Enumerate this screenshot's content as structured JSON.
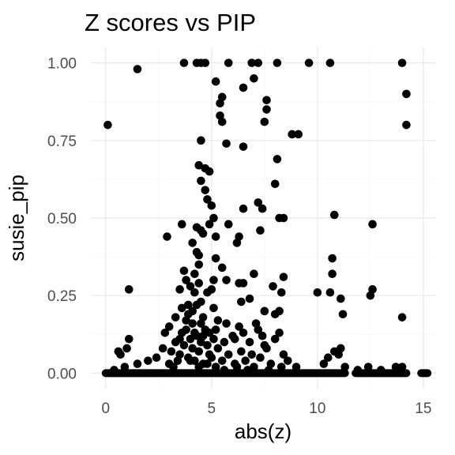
{
  "chart_data": {
    "type": "scatter",
    "title": "Z scores vs PIP",
    "xlabel": "abs(z)",
    "ylabel": "susie_pip",
    "xlim": [
      -0.7,
      15.6
    ],
    "ylim": [
      -0.05,
      1.05
    ],
    "x_ticks": [
      0,
      5,
      10,
      15
    ],
    "x_tick_labels": [
      "0",
      "5",
      "10",
      "15"
    ],
    "y_ticks": [
      0,
      0.25,
      0.5,
      0.75,
      1.0
    ],
    "y_tick_labels": [
      "0.00",
      "0.25",
      "0.50",
      "0.75",
      "1.00"
    ],
    "grid": true,
    "legend": "none",
    "point_color": "#000000",
    "series": [
      {
        "points": [
          [
            0.1,
            0.8
          ],
          [
            1.5,
            0.98
          ],
          [
            3.7,
            1.0
          ],
          [
            4.3,
            1.0
          ],
          [
            4.5,
            1.0
          ],
          [
            4.7,
            1.0
          ],
          [
            5.8,
            1.0
          ],
          [
            6.9,
            1.0
          ],
          [
            7.2,
            1.0
          ],
          [
            8.1,
            1.0
          ],
          [
            9.6,
            1.0
          ],
          [
            10.6,
            1.0
          ],
          [
            14.0,
            1.0
          ],
          [
            5.2,
            0.94
          ],
          [
            6.5,
            0.92
          ],
          [
            7.0,
            0.95
          ],
          [
            14.2,
            0.9
          ],
          [
            7.6,
            0.88
          ],
          [
            5.5,
            0.89
          ],
          [
            5.4,
            0.87
          ],
          [
            7.6,
            0.85
          ],
          [
            5.4,
            0.83
          ],
          [
            5.5,
            0.81
          ],
          [
            7.5,
            0.81
          ],
          [
            14.2,
            0.8
          ],
          [
            8.8,
            0.77
          ],
          [
            9.1,
            0.77
          ],
          [
            4.5,
            0.75
          ],
          [
            5.7,
            0.74
          ],
          [
            6.5,
            0.73
          ],
          [
            8.1,
            0.69
          ],
          [
            4.4,
            0.67
          ],
          [
            4.7,
            0.66
          ],
          [
            4.9,
            0.65
          ],
          [
            4.5,
            0.62
          ],
          [
            8.0,
            0.61
          ],
          [
            4.7,
            0.59
          ],
          [
            4.8,
            0.56
          ],
          [
            5.0,
            0.54
          ],
          [
            7.2,
            0.55
          ],
          [
            6.5,
            0.53
          ],
          [
            7.4,
            0.53
          ],
          [
            8.2,
            0.5
          ],
          [
            8.4,
            0.5
          ],
          [
            10.8,
            0.51
          ],
          [
            5.1,
            0.5
          ],
          [
            3.6,
            0.48
          ],
          [
            4.3,
            0.47
          ],
          [
            4.5,
            0.46
          ],
          [
            4.9,
            0.48
          ],
          [
            5.8,
            0.48
          ],
          [
            12.6,
            0.48
          ],
          [
            2.9,
            0.44
          ],
          [
            4.6,
            0.45
          ],
          [
            5.2,
            0.44
          ],
          [
            6.3,
            0.44
          ],
          [
            7.3,
            0.46
          ],
          [
            4.1,
            0.42
          ],
          [
            6.2,
            0.42
          ],
          [
            4.3,
            0.39
          ],
          [
            4.4,
            0.38
          ],
          [
            5.2,
            0.37
          ],
          [
            4.4,
            0.35
          ],
          [
            5.5,
            0.34
          ],
          [
            10.7,
            0.37
          ],
          [
            3.7,
            0.33
          ],
          [
            4.2,
            0.32
          ],
          [
            5.1,
            0.3
          ],
          [
            7.0,
            0.32
          ],
          [
            8.4,
            0.31
          ],
          [
            10.7,
            0.32
          ],
          [
            3.8,
            0.3
          ],
          [
            4.0,
            0.28
          ],
          [
            4.4,
            0.29
          ],
          [
            5.7,
            0.3
          ],
          [
            6.3,
            0.29
          ],
          [
            6.5,
            0.29
          ],
          [
            7.9,
            0.28
          ],
          [
            1.1,
            0.27
          ],
          [
            3.5,
            0.27
          ],
          [
            4.2,
            0.26
          ],
          [
            4.8,
            0.26
          ],
          [
            5.0,
            0.27
          ],
          [
            8.3,
            0.26
          ],
          [
            10.0,
            0.26
          ],
          [
            10.6,
            0.26
          ],
          [
            11.1,
            0.24
          ],
          [
            12.6,
            0.27
          ],
          [
            12.5,
            0.25
          ],
          [
            3.9,
            0.22
          ],
          [
            4.5,
            0.23
          ],
          [
            5.1,
            0.21
          ],
          [
            6.4,
            0.23
          ],
          [
            6.8,
            0.24
          ],
          [
            7.5,
            0.2
          ],
          [
            8.0,
            0.19
          ],
          [
            8.2,
            0.2
          ],
          [
            11.2,
            0.19
          ],
          [
            14.0,
            0.18
          ],
          [
            3.3,
            0.18
          ],
          [
            3.8,
            0.17
          ],
          [
            4.1,
            0.16
          ],
          [
            4.6,
            0.18
          ],
          [
            5.3,
            0.17
          ],
          [
            5.7,
            0.16
          ],
          [
            6.3,
            0.15
          ],
          [
            7.1,
            0.16
          ],
          [
            3.0,
            0.15
          ],
          [
            2.8,
            0.13
          ],
          [
            3.6,
            0.13
          ],
          [
            4.3,
            0.12
          ],
          [
            5.2,
            0.14
          ],
          [
            6.0,
            0.12
          ],
          [
            6.5,
            0.13
          ],
          [
            7.2,
            0.14
          ],
          [
            7.4,
            0.12
          ],
          [
            8.2,
            0.13
          ],
          [
            3.3,
            0.1
          ],
          [
            3.7,
            0.09
          ],
          [
            4.0,
            0.11
          ],
          [
            4.5,
            0.1
          ],
          [
            4.8,
            0.09
          ],
          [
            5.6,
            0.1
          ],
          [
            6.1,
            0.11
          ],
          [
            6.8,
            0.1
          ],
          [
            7.5,
            0.09
          ],
          [
            8.0,
            0.11
          ],
          [
            1.1,
            0.11
          ],
          [
            1.0,
            0.08
          ],
          [
            0.6,
            0.07
          ],
          [
            0.7,
            0.06
          ],
          [
            2.7,
            0.08
          ],
          [
            3.1,
            0.07
          ],
          [
            3.5,
            0.06
          ],
          [
            4.1,
            0.08
          ],
          [
            4.4,
            0.07
          ],
          [
            4.9,
            0.06
          ],
          [
            5.3,
            0.08
          ],
          [
            5.8,
            0.06
          ],
          [
            6.4,
            0.07
          ],
          [
            6.9,
            0.06
          ],
          [
            7.6,
            0.08
          ],
          [
            8.4,
            0.06
          ],
          [
            11.1,
            0.08
          ],
          [
            11.0,
            0.06
          ],
          [
            10.8,
            0.07
          ],
          [
            10.5,
            0.05
          ],
          [
            1.5,
            0.03
          ],
          [
            2.0,
            0.04
          ],
          [
            2.4,
            0.05
          ],
          [
            3.0,
            0.03
          ],
          [
            3.4,
            0.04
          ],
          [
            3.9,
            0.05
          ],
          [
            4.2,
            0.04
          ],
          [
            4.6,
            0.03
          ],
          [
            5.0,
            0.05
          ],
          [
            5.5,
            0.04
          ],
          [
            6.1,
            0.03
          ],
          [
            6.6,
            0.04
          ],
          [
            7.3,
            0.05
          ],
          [
            7.8,
            0.03
          ],
          [
            8.6,
            0.04
          ],
          [
            9.0,
            0.02
          ],
          [
            10.3,
            0.03
          ],
          [
            11.3,
            0.02
          ],
          [
            11.9,
            0.01
          ],
          [
            12.4,
            0.02
          ],
          [
            13.0,
            0.01
          ],
          [
            13.7,
            0.02
          ],
          [
            14.0,
            0.02
          ],
          [
            0.9,
            0.02
          ],
          [
            0.4,
            0.01
          ],
          [
            3.6,
            0.21
          ],
          [
            3.9,
            0.19
          ],
          [
            4.1,
            0.2
          ],
          [
            4.3,
            0.22
          ],
          [
            4.5,
            0.16
          ],
          [
            4.7,
            0.14
          ],
          [
            3.8,
            0.14
          ],
          [
            4.2,
            0.13
          ],
          [
            4.6,
            0.12
          ],
          [
            4.9,
            0.13
          ],
          [
            5.1,
            0.11
          ],
          [
            3.5,
            0.11
          ],
          [
            4.0,
            0.04
          ],
          [
            4.4,
            0.02
          ],
          [
            4.8,
            0.03
          ],
          [
            3.2,
            0.02
          ],
          [
            5.2,
            0.02
          ],
          [
            5.6,
            0.01
          ],
          [
            6.2,
            0.02
          ],
          [
            6.7,
            0.01
          ],
          [
            7.0,
            0.02
          ],
          [
            7.7,
            0.01
          ],
          [
            8.3,
            0.02
          ]
        ]
      }
    ],
    "dense_band": {
      "y_baseline": 0.0,
      "x_ranges": [
        [
          0.0,
          11.3
        ],
        [
          11.8,
          14.2
        ],
        [
          14.9,
          15.2
        ]
      ]
    }
  }
}
